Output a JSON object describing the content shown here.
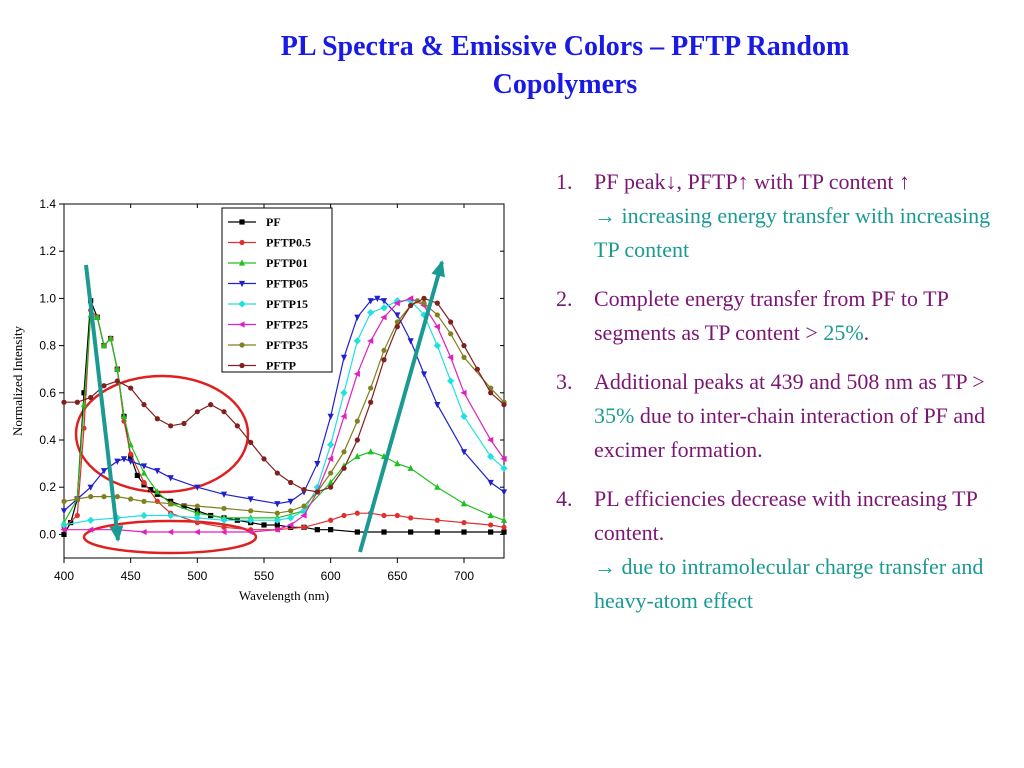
{
  "slide": {
    "title_line1": "PL Spectra & Emissive Colors – PFTP Random",
    "title_line2": "Copolymers"
  },
  "bullets": [
    {
      "number": "1.",
      "text_a": "PF peak↓, PFTP↑ with TP content ↑",
      "text_b": "→  increasing energy transfer with increasing TP content"
    },
    {
      "number": "2.",
      "text_a": "Complete energy transfer from PF to TP segments as TP content >",
      "text_highlight": "25%",
      "text_end": "."
    },
    {
      "number": "3.",
      "text_a": "Additional peaks at 439 and 508 nm as TP >",
      "text_highlight": "35%",
      "text_end": "due to inter-chain interaction of PF and excimer formation."
    },
    {
      "number": "4.",
      "text_a": "PL efficiencies decrease with increasing TP content.",
      "text_b": "→  due to intramolecular charge transfer and heavy-atom effect"
    }
  ],
  "colors": {
    "title": "#1a1ae6",
    "bullet_text": "#7b1572",
    "highlight": "#1a9a92",
    "arrow": "#1a9a92",
    "ellipse": "#e02020"
  },
  "chart_data": {
    "type": "line",
    "xlabel": "Wavelength (nm)",
    "ylabel": "Normalized Intensity",
    "xlim": [
      400,
      730
    ],
    "ylim": [
      -0.1,
      1.4
    ],
    "xticks": [
      400,
      450,
      500,
      550,
      600,
      650,
      700
    ],
    "yticks": [
      0.0,
      0.2,
      0.4,
      0.6,
      0.8,
      1.0,
      1.2,
      1.4
    ],
    "legend_position": "top-center",
    "series": [
      {
        "name": "PF",
        "color": "#000000",
        "marker": "square",
        "x": [
          400,
          405,
          410,
          415,
          420,
          425,
          430,
          435,
          440,
          445,
          450,
          455,
          460,
          465,
          470,
          480,
          490,
          500,
          510,
          520,
          530,
          540,
          550,
          560,
          570,
          580,
          590,
          600,
          620,
          640,
          660,
          680,
          700,
          720,
          730
        ],
        "y": [
          0.0,
          0.05,
          0.15,
          0.6,
          0.99,
          0.92,
          0.8,
          0.83,
          0.7,
          0.5,
          0.33,
          0.25,
          0.21,
          0.19,
          0.17,
          0.14,
          0.12,
          0.1,
          0.08,
          0.07,
          0.06,
          0.05,
          0.04,
          0.04,
          0.03,
          0.03,
          0.02,
          0.02,
          0.01,
          0.01,
          0.01,
          0.01,
          0.01,
          0.01,
          0.01
        ]
      },
      {
        "name": "PFTP0.5",
        "color": "#e03030",
        "marker": "circle",
        "x": [
          400,
          410,
          415,
          420,
          425,
          430,
          435,
          440,
          445,
          450,
          460,
          470,
          480,
          500,
          520,
          540,
          560,
          580,
          600,
          610,
          620,
          630,
          640,
          650,
          660,
          680,
          700,
          720,
          730
        ],
        "y": [
          0.03,
          0.08,
          0.45,
          0.95,
          0.92,
          0.8,
          0.83,
          0.7,
          0.48,
          0.34,
          0.22,
          0.14,
          0.09,
          0.05,
          0.03,
          0.02,
          0.02,
          0.03,
          0.06,
          0.08,
          0.09,
          0.09,
          0.08,
          0.08,
          0.07,
          0.06,
          0.05,
          0.04,
          0.03
        ]
      },
      {
        "name": "PFTP01",
        "color": "#20c020",
        "marker": "triangle-up",
        "x": [
          400,
          410,
          415,
          420,
          425,
          430,
          435,
          440,
          445,
          450,
          460,
          470,
          480,
          500,
          520,
          540,
          560,
          580,
          600,
          610,
          620,
          630,
          640,
          650,
          660,
          680,
          700,
          720,
          730
        ],
        "y": [
          0.05,
          0.15,
          0.55,
          0.93,
          0.92,
          0.8,
          0.83,
          0.7,
          0.5,
          0.38,
          0.26,
          0.18,
          0.13,
          0.09,
          0.07,
          0.07,
          0.07,
          0.1,
          0.22,
          0.29,
          0.33,
          0.35,
          0.33,
          0.3,
          0.28,
          0.2,
          0.13,
          0.08,
          0.06
        ]
      },
      {
        "name": "PFTP05",
        "color": "#2020d0",
        "marker": "triangle-down",
        "x": [
          400,
          410,
          420,
          430,
          440,
          445,
          450,
          460,
          470,
          480,
          500,
          520,
          540,
          560,
          570,
          580,
          590,
          600,
          610,
          620,
          630,
          635,
          640,
          650,
          660,
          670,
          680,
          700,
          720,
          730
        ],
        "y": [
          0.1,
          0.15,
          0.2,
          0.27,
          0.31,
          0.32,
          0.31,
          0.29,
          0.27,
          0.24,
          0.2,
          0.17,
          0.15,
          0.13,
          0.14,
          0.18,
          0.3,
          0.5,
          0.75,
          0.92,
          0.99,
          1.0,
          0.99,
          0.93,
          0.82,
          0.68,
          0.55,
          0.35,
          0.22,
          0.18
        ]
      },
      {
        "name": "PFTP15",
        "color": "#20e0e0",
        "marker": "diamond",
        "x": [
          400,
          420,
          440,
          460,
          480,
          500,
          520,
          540,
          560,
          570,
          580,
          590,
          600,
          610,
          620,
          630,
          640,
          650,
          660,
          670,
          680,
          690,
          700,
          720,
          730
        ],
        "y": [
          0.04,
          0.06,
          0.07,
          0.08,
          0.08,
          0.07,
          0.06,
          0.06,
          0.06,
          0.07,
          0.1,
          0.2,
          0.38,
          0.6,
          0.82,
          0.94,
          0.96,
          0.99,
          0.99,
          0.93,
          0.8,
          0.65,
          0.5,
          0.33,
          0.28
        ]
      },
      {
        "name": "PFTP25",
        "color": "#e020c0",
        "marker": "triangle-left",
        "x": [
          400,
          420,
          440,
          460,
          480,
          500,
          520,
          540,
          560,
          570,
          580,
          590,
          600,
          610,
          620,
          630,
          640,
          650,
          660,
          670,
          680,
          690,
          700,
          720,
          730
        ],
        "y": [
          0.02,
          0.02,
          0.02,
          0.01,
          0.01,
          0.01,
          0.01,
          0.01,
          0.02,
          0.04,
          0.08,
          0.18,
          0.32,
          0.5,
          0.68,
          0.82,
          0.92,
          0.98,
          1.0,
          0.97,
          0.88,
          0.75,
          0.6,
          0.4,
          0.32
        ]
      },
      {
        "name": "PFTP35",
        "color": "#808020",
        "marker": "circle",
        "x": [
          400,
          410,
          420,
          430,
          440,
          450,
          460,
          480,
          500,
          520,
          540,
          560,
          570,
          580,
          590,
          600,
          610,
          620,
          630,
          640,
          650,
          660,
          665,
          670,
          680,
          690,
          700,
          720,
          730
        ],
        "y": [
          0.14,
          0.15,
          0.16,
          0.16,
          0.16,
          0.15,
          0.14,
          0.13,
          0.12,
          0.11,
          0.1,
          0.09,
          0.1,
          0.12,
          0.18,
          0.26,
          0.35,
          0.48,
          0.62,
          0.78,
          0.9,
          0.97,
          0.99,
          0.98,
          0.93,
          0.85,
          0.75,
          0.62,
          0.56
        ]
      },
      {
        "name": "PFTP",
        "color": "#802020",
        "marker": "circle",
        "x": [
          400,
          410,
          420,
          430,
          440,
          450,
          460,
          470,
          480,
          490,
          500,
          510,
          520,
          530,
          540,
          550,
          560,
          570,
          580,
          590,
          600,
          610,
          620,
          630,
          640,
          650,
          660,
          670,
          680,
          690,
          700,
          710,
          720,
          730
        ],
        "y": [
          0.56,
          0.56,
          0.58,
          0.63,
          0.65,
          0.62,
          0.55,
          0.49,
          0.46,
          0.47,
          0.52,
          0.55,
          0.52,
          0.46,
          0.39,
          0.32,
          0.26,
          0.22,
          0.19,
          0.18,
          0.2,
          0.28,
          0.4,
          0.56,
          0.74,
          0.88,
          0.97,
          1.0,
          0.98,
          0.9,
          0.8,
          0.7,
          0.6,
          0.55
        ]
      }
    ]
  }
}
